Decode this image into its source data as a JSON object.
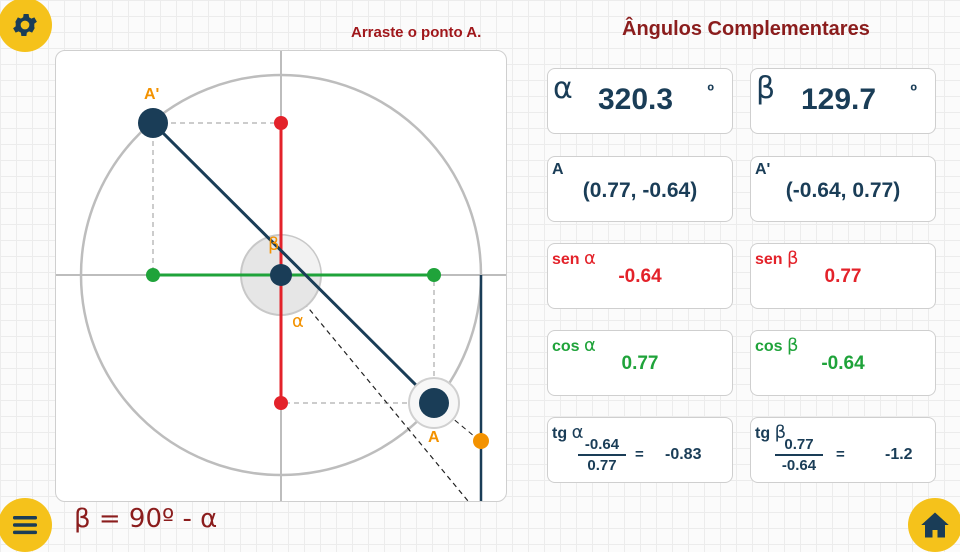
{
  "hint": "Arraste o ponto A.",
  "title": "Ângulos Complementares",
  "formula": "β = 90º -  α",
  "icons": {
    "settings": "gear-icon",
    "menu": "hamburger-menu-icon",
    "home": "home-icon"
  },
  "colors": {
    "accent": "#f5c21b",
    "navy": "#1a3d57",
    "red": "#e3222a",
    "green": "#1fa33a",
    "orange": "#f39200",
    "title": "#8b1d1d"
  },
  "plot": {
    "label_a": "A",
    "label_a_prime": "A'",
    "label_alpha": "α",
    "label_beta": "β"
  },
  "cards": {
    "alpha": {
      "symbol": "α",
      "value": "320.3",
      "unit": "º"
    },
    "beta": {
      "symbol": "β",
      "value": "129.7",
      "unit": "º"
    },
    "point_a": {
      "label": "A",
      "value": "(0.77, -0.64)"
    },
    "point_a_prime": {
      "label": "A'",
      "value": "(-0.64, 0.77)"
    },
    "sen_alpha": {
      "label": "sen",
      "symbol": "α",
      "value": "-0.64"
    },
    "sen_beta": {
      "label": "sen",
      "symbol": "β",
      "value": "0.77"
    },
    "cos_alpha": {
      "label": "cos",
      "symbol": "α",
      "value": "0.77"
    },
    "cos_beta": {
      "label": "cos",
      "symbol": "β",
      "value": "-0.64"
    },
    "tg_alpha": {
      "label": "tg",
      "symbol": "α",
      "numerator": "-0.64",
      "denominator": "0.77",
      "equals": "=",
      "result": "-0.83"
    },
    "tg_beta": {
      "label": "tg",
      "symbol": "β",
      "numerator": "0.77",
      "denominator": "-0.64",
      "equals": "=",
      "result": "-1.2"
    }
  }
}
